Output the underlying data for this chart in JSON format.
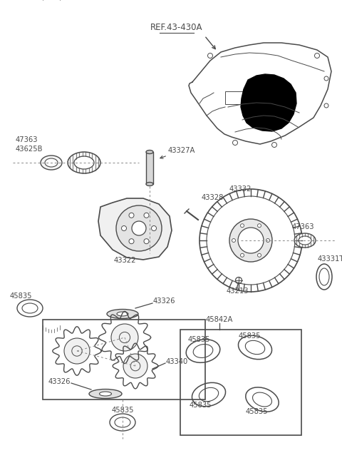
{
  "bg_color": "#ffffff",
  "line_color": "#4a4a4a",
  "text_color": "#4a4a4a",
  "fig_w": 4.8,
  "fig_h": 6.56,
  "dpi": 100,
  "labels": {
    "ref": "REF.43-430A",
    "47363_a": "47363",
    "43625B": "43625B",
    "43327A": "43327A",
    "43328": "43328",
    "43332": "43332",
    "47363_b": "47363",
    "43331T": "43331T",
    "43322": "43322",
    "45835_a": "45835",
    "43326_a": "43326",
    "43213": "43213",
    "45842A": "45842A",
    "43340": "43340",
    "43326_b": "43326",
    "45835_b": "45835",
    "45835_c": "45835",
    "45835_d": "45835",
    "45835_e": "45835",
    "45835_f": "45835"
  }
}
